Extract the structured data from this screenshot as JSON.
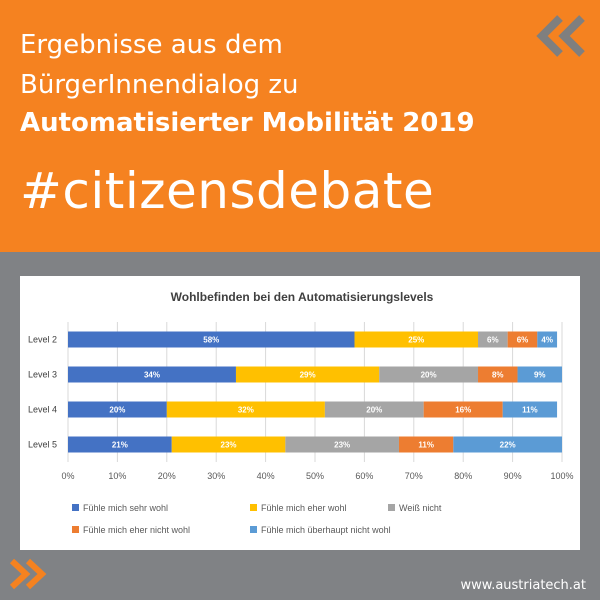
{
  "header": {
    "line1": "Ergebnisse aus dem",
    "line2": "BürgerInnendialog zu",
    "line3": "Automatisierter Mobilität 2019",
    "hashtag": "#citizensdebate"
  },
  "footer": {
    "url": "www.austriatech.at"
  },
  "colors": {
    "orange": "#f58220",
    "gray_band": "#808285",
    "chevron_gray": "#7f7f7f",
    "series": [
      "#4472c4",
      "#ffc000",
      "#a5a5a5",
      "#ed7d31",
      "#5b9bd5"
    ]
  },
  "chart_data": {
    "type": "bar",
    "orientation": "horizontal",
    "stacked": "percent",
    "title": "Wohlbefinden bei den Automatisierungslevels",
    "categories": [
      "Level 2",
      "Level 3",
      "Level 4",
      "Level 5"
    ],
    "series": [
      {
        "name": "Fühle mich sehr wohl",
        "values": [
          58,
          34,
          20,
          21
        ]
      },
      {
        "name": "Fühle mich eher wohl",
        "values": [
          25,
          29,
          32,
          23
        ]
      },
      {
        "name": "Weiß nicht",
        "values": [
          6,
          20,
          20,
          23
        ]
      },
      {
        "name": "Fühle mich eher nicht wohl",
        "values": [
          6,
          8,
          16,
          11
        ]
      },
      {
        "name": "Fühle mich überhaupt nicht wohl",
        "values": [
          4,
          9,
          11,
          22
        ]
      }
    ],
    "xlim": [
      0,
      100
    ],
    "xticks": [
      "0%",
      "10%",
      "20%",
      "30%",
      "40%",
      "50%",
      "60%",
      "70%",
      "80%",
      "90%",
      "100%"
    ],
    "grid": true,
    "legend": "bottom"
  }
}
